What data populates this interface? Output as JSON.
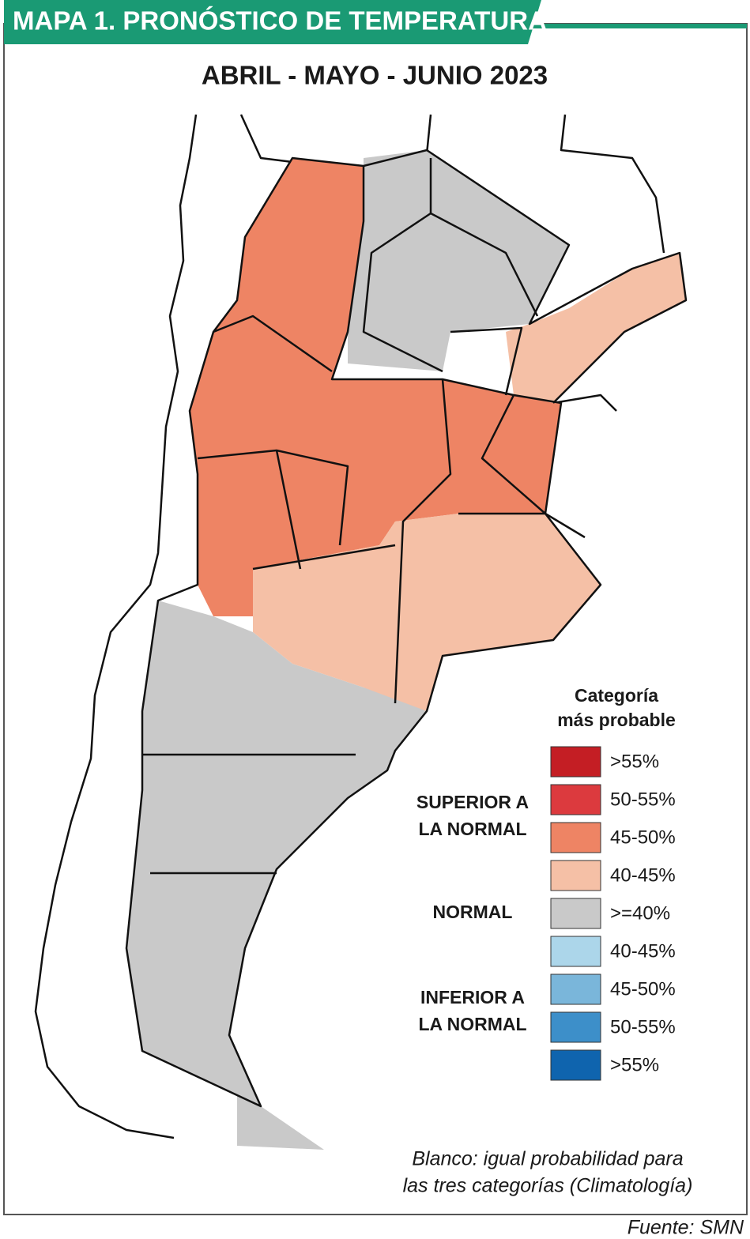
{
  "header": {
    "title": "MAPA 1.  PRONÓSTICO DE TEMPERATURA",
    "subtitle": "ABRIL - MAYO - JUNIO 2023"
  },
  "legend": {
    "title": [
      "Categoría",
      "más probable"
    ],
    "groups": [
      {
        "lines": [
          "SUPERIOR A",
          "LA NORMAL"
        ]
      },
      {
        "lines": [
          "NORMAL"
        ]
      },
      {
        "lines": [
          "INFERIOR A",
          "LA NORMAL"
        ]
      }
    ],
    "items": [
      {
        "label": ">55%",
        "color": "#c41e24"
      },
      {
        "label": "50-55%",
        "color": "#dc3a3e"
      },
      {
        "label": "45-50%",
        "color": "#ee8464"
      },
      {
        "label": "40-45%",
        "color": "#f5c0a6"
      },
      {
        "label": ">=40%",
        "color": "#c9c9c9"
      },
      {
        "label": "40-45%",
        "color": "#acd6ea"
      },
      {
        "label": "45-50%",
        "color": "#7ab6da"
      },
      {
        "label": "50-55%",
        "color": "#3d8fc9"
      },
      {
        "label": ">55%",
        "color": "#0f64ae"
      }
    ]
  },
  "note": [
    "Blanco: igual probabilidad para",
    "las tres categorías (Climatología)"
  ],
  "source": "Fuente: SMN"
}
